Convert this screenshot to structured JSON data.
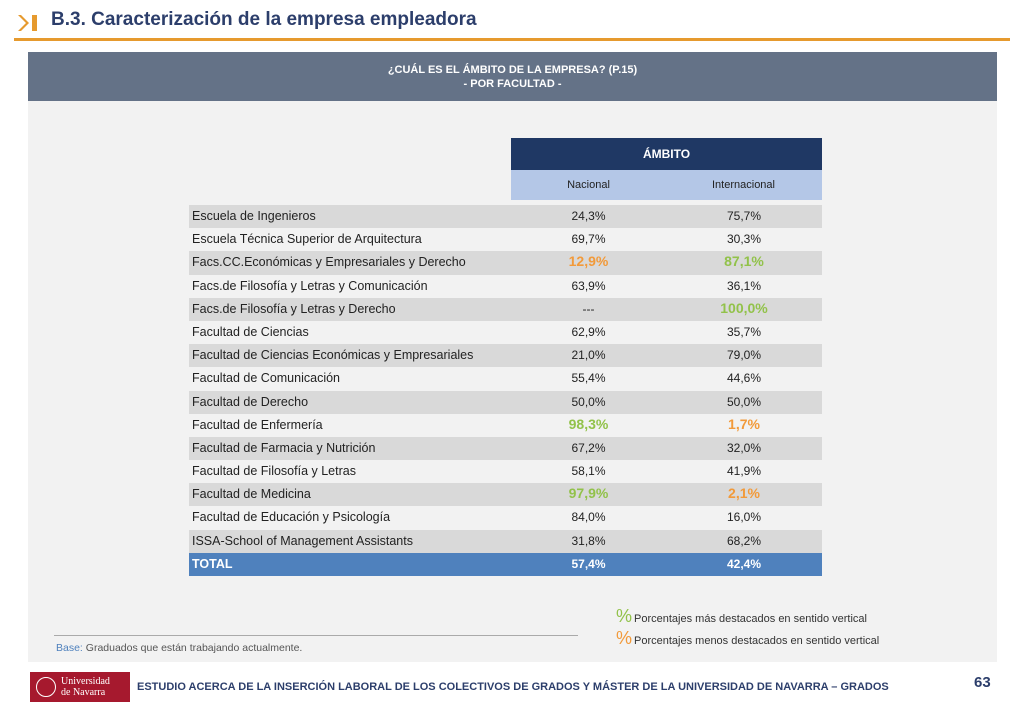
{
  "header": {
    "title": "B.3. Caracterización de la empresa empleadora"
  },
  "panel": {
    "title_line1": "¿CUÁL ES EL ÁMBITO DE LA EMPRESA? (P.15)",
    "title_line2": "- POR FACULTAD -"
  },
  "table": {
    "group_header": "ÁMBITO",
    "columns": [
      "Nacional",
      "Internacional"
    ],
    "rows": [
      {
        "name": "Escuela de Ingenieros",
        "nacional": "24,3%",
        "internacional": "75,7%",
        "hl1": "",
        "hl2": ""
      },
      {
        "name": "Escuela Técnica Superior de Arquitectura",
        "nacional": "69,7%",
        "internacional": "30,3%",
        "hl1": "",
        "hl2": ""
      },
      {
        "name": "Facs.CC.Económicas y Empresariales y Derecho",
        "nacional": "12,9%",
        "internacional": "87,1%",
        "hl1": "lo",
        "hl2": "hi"
      },
      {
        "name": "Facs.de Filosofía y Letras y Comunicación",
        "nacional": "63,9%",
        "internacional": "36,1%",
        "hl1": "",
        "hl2": ""
      },
      {
        "name": "Facs.de Filosofía y Letras y Derecho",
        "nacional": "---",
        "internacional": "100,0%",
        "hl1": "",
        "hl2": "hi"
      },
      {
        "name": "Facultad de Ciencias",
        "nacional": "62,9%",
        "internacional": "35,7%",
        "hl1": "",
        "hl2": ""
      },
      {
        "name": "Facultad de Ciencias Económicas y Empresariales",
        "nacional": "21,0%",
        "internacional": "79,0%",
        "hl1": "",
        "hl2": ""
      },
      {
        "name": "Facultad de Comunicación",
        "nacional": "55,4%",
        "internacional": "44,6%",
        "hl1": "",
        "hl2": ""
      },
      {
        "name": "Facultad de Derecho",
        "nacional": "50,0%",
        "internacional": "50,0%",
        "hl1": "",
        "hl2": ""
      },
      {
        "name": "Facultad de Enfermería",
        "nacional": "98,3%",
        "internacional": "1,7%",
        "hl1": "hi",
        "hl2": "lo"
      },
      {
        "name": "Facultad de Farmacia y Nutrición",
        "nacional": "67,2%",
        "internacional": "32,0%",
        "hl1": "",
        "hl2": ""
      },
      {
        "name": "Facultad de Filosofía y Letras",
        "nacional": "58,1%",
        "internacional": "41,9%",
        "hl1": "",
        "hl2": ""
      },
      {
        "name": "Facultad de Medicina",
        "nacional": "97,9%",
        "internacional": "2,1%",
        "hl1": "hi",
        "hl2": "lo"
      },
      {
        "name": "Facultad de Educación y Psicología",
        "nacional": "84,0%",
        "internacional": "16,0%",
        "hl1": "",
        "hl2": ""
      },
      {
        "name": "ISSA-School of Management Assistants",
        "nacional": "31,8%",
        "internacional": "68,2%",
        "hl1": "",
        "hl2": ""
      }
    ],
    "total": {
      "name": "TOTAL",
      "nacional": "57,4%",
      "internacional": "42,4%"
    }
  },
  "legend": {
    "symbol": "%",
    "high_label": "Porcentajes más destacados en sentido vertical",
    "low_label": "Porcentajes menos destacados en sentido vertical",
    "high_color": "#92c24a",
    "low_color": "#f29a3a"
  },
  "base": {
    "label": "Base:",
    "text": "Graduados que están trabajando actualmente."
  },
  "footer": {
    "logo_line1": "Universidad",
    "logo_line2": "de Navarra",
    "text": "ESTUDIO ACERCA DE LA INSERCIÓN LABORAL DE LOS COLECTIVOS DE GRADOS Y MÁSTER DE LA UNIVERSIDAD DE NAVARRA – GRADOS",
    "page": "63"
  }
}
